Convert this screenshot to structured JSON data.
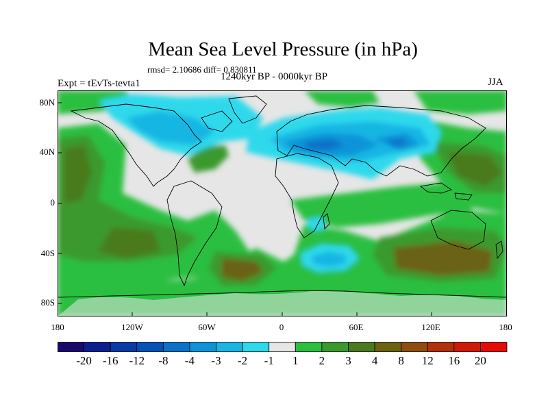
{
  "title": "Mean Sea Level Pressure (in hPa)",
  "stats": "rmsd= 2.10686 diff= 0.830811",
  "period": "1240kyr BP - 0000kyr BP",
  "experiment": "Expt = tEvTs-tevta1",
  "season": "JJA",
  "lat_labels": [
    "80N",
    "40N",
    "0",
    "40S",
    "80S"
  ],
  "lon_labels": [
    "180",
    "120W",
    "60W",
    "0",
    "60E",
    "120E",
    "180"
  ],
  "colorbar": {
    "labels": [
      "-20",
      "-16",
      "-12",
      "-8",
      "-4",
      "-3",
      "-2",
      "-1",
      "1",
      "2",
      "3",
      "4",
      "8",
      "12",
      "16",
      "20"
    ],
    "colors": [
      "#1a0a6e",
      "#0c1f8f",
      "#0a39a8",
      "#0653b8",
      "#0a72c8",
      "#0d94d8",
      "#19b6e3",
      "#2fd9ec",
      "#e6e6e6",
      "#2bbf3f",
      "#3b9a2e",
      "#4a7a1f",
      "#6b6212",
      "#8f4d0f",
      "#b2300b",
      "#cf1a08",
      "#e80a04"
    ]
  },
  "map_colors": {
    "neutral": "#e6e6e6",
    "pos1": "#2bbf3f",
    "pos2": "#3b9a2e",
    "pos3": "#4a7a1f",
    "pos4": "#6b6212",
    "neg1": "#2fd9ec",
    "neg2": "#19b6e3",
    "neg3": "#0d94d8",
    "neg4": "#0a72c8"
  }
}
